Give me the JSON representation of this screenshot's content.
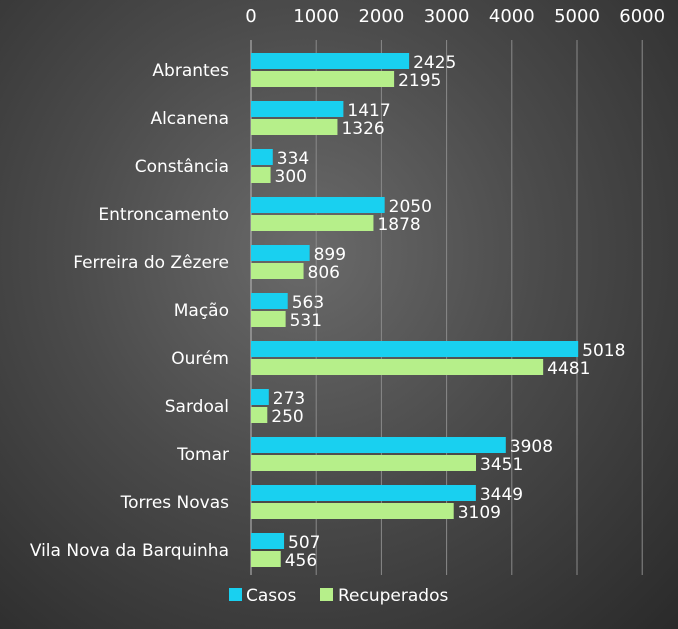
{
  "chart_data": {
    "type": "bar",
    "orientation": "horizontal",
    "categories": [
      "Abrantes",
      "Alcanena",
      "Constância",
      "Entroncamento",
      "Ferreira do Zêzere",
      "Mação",
      "Ourém",
      "Sardoal",
      "Tomar",
      "Torres Novas",
      "Vila Nova da Barquinha"
    ],
    "series": [
      {
        "name": "Casos",
        "color": "#19d0f0",
        "values": [
          2425,
          1417,
          334,
          2050,
          899,
          563,
          5018,
          273,
          3908,
          3449,
          507
        ]
      },
      {
        "name": "Recuperados",
        "color": "#b6ef8a",
        "values": [
          2195,
          1326,
          300,
          1878,
          806,
          531,
          4481,
          250,
          3451,
          3109,
          456
        ]
      }
    ],
    "xlim": [
      0,
      6000
    ],
    "xticks": [
      0,
      1000,
      2000,
      3000,
      4000,
      5000,
      6000
    ],
    "x_axis_position": "top",
    "grid": true,
    "legend_position": "bottom",
    "data_labels": true
  }
}
